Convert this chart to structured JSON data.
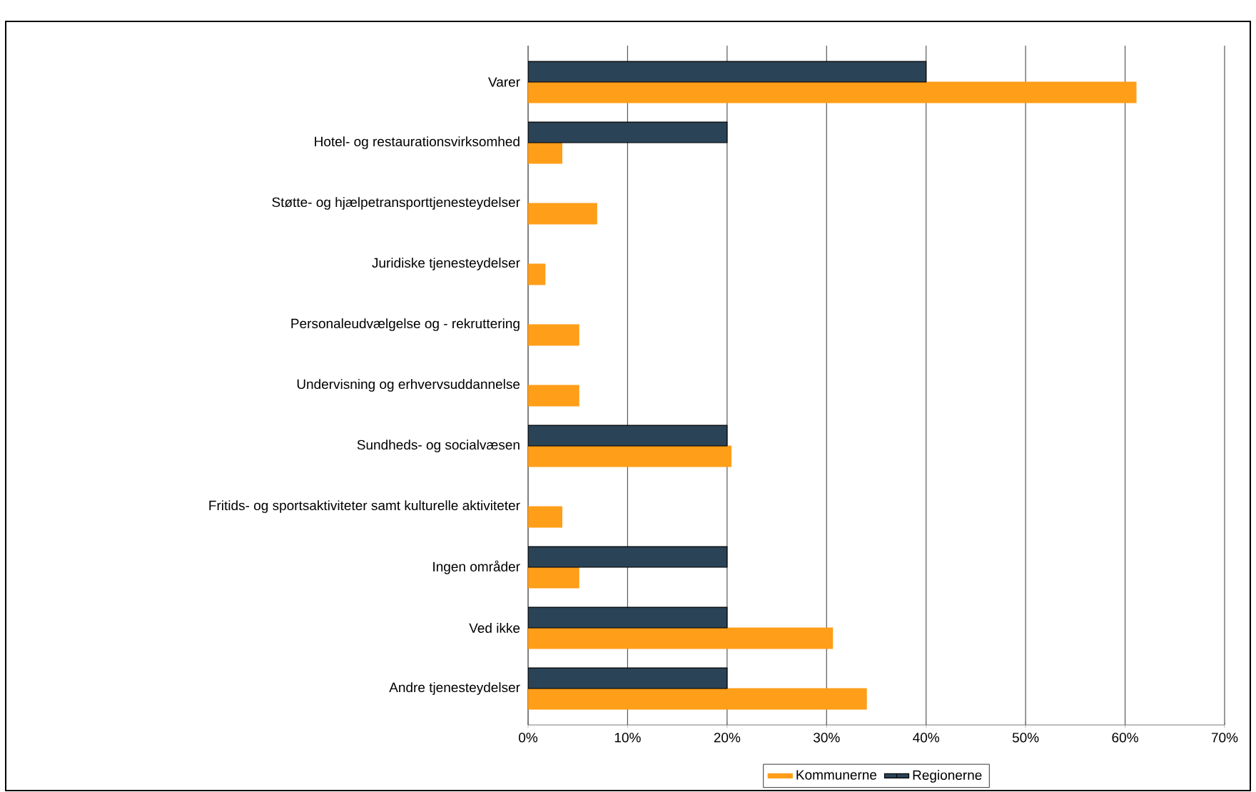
{
  "chart_data": {
    "type": "bar",
    "orientation": "horizontal",
    "categories": [
      "Varer",
      "Hotel- og restaurationsvirksomhed",
      "Støtte- og hjælpetransporttjenesteydelser",
      "Juridiske tjenesteydelser",
      "Personaleudvælgelse og - rekruttering",
      "Undervisning og erhvervsuddannelse",
      "Sundheds- og socialvæsen",
      "Fritids- og sportsaktiviteter samt kulturelle aktiviteter",
      "Ingen områder",
      "Ved ikke",
      "Andre tjenesteydelser"
    ],
    "series": [
      {
        "name": "Kommunerne",
        "color": "#ff9e18",
        "values": [
          61.1,
          3.4,
          6.9,
          1.7,
          5.1,
          5.1,
          20.4,
          3.4,
          5.1,
          30.6,
          34.0
        ]
      },
      {
        "name": "Regionerne",
        "color": "#2b4356",
        "values": [
          40,
          20,
          null,
          null,
          null,
          null,
          20,
          null,
          20,
          20,
          20
        ]
      }
    ],
    "xlim": [
      0,
      70
    ],
    "xticks": [
      {
        "value": 0,
        "label": "0%"
      },
      {
        "value": 10,
        "label": "10%"
      },
      {
        "value": 20,
        "label": "20%"
      },
      {
        "value": 30,
        "label": "30%"
      },
      {
        "value": 40,
        "label": "40%"
      },
      {
        "value": 50,
        "label": "50%"
      },
      {
        "value": 60,
        "label": "60%"
      },
      {
        "value": 70,
        "label": "70%"
      }
    ],
    "grid": "x",
    "legend": "bottom"
  }
}
